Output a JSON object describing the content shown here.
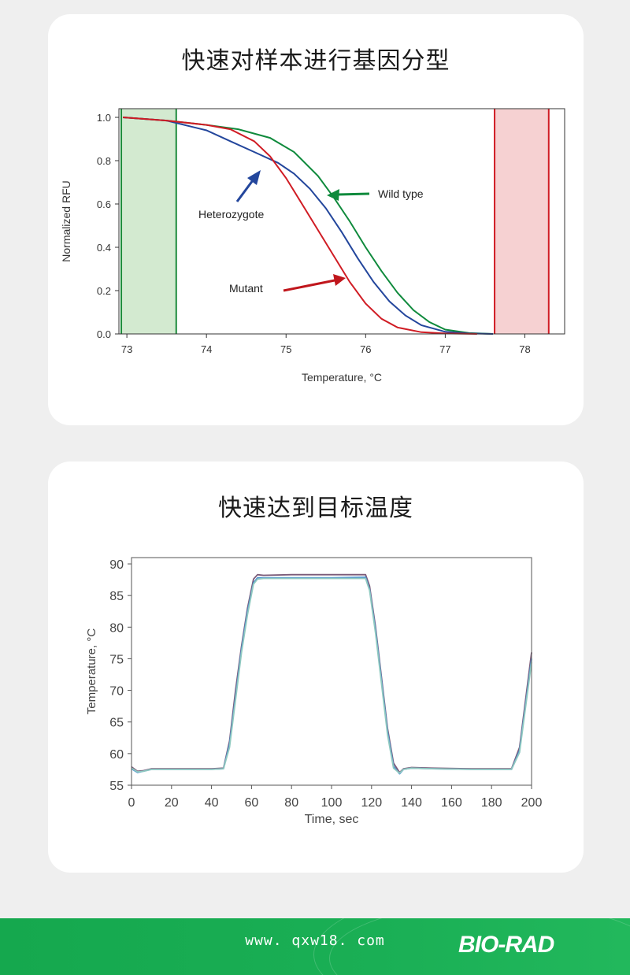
{
  "panel1": {
    "title": "快速对样本进行基因分型",
    "chart_data": {
      "type": "line",
      "xlabel": "Temperature, °C",
      "ylabel": "Normalized RFU",
      "xlim": [
        72.9,
        78.5
      ],
      "ylim": [
        0.0,
        1.04
      ],
      "xticks": [
        "73",
        "74",
        "75",
        "76",
        "77",
        "78"
      ],
      "yticks": [
        "0.0",
        "0.2",
        "0.4",
        "0.6",
        "0.8",
        "1.0"
      ],
      "regions": [
        {
          "x0": 72.93,
          "x1": 73.62,
          "fill": "#d3ead0",
          "stroke": "#1e8c3c"
        },
        {
          "x0": 77.62,
          "x1": 78.3,
          "fill": "#f6d1d2",
          "stroke": "#d01c24"
        }
      ],
      "series": [
        {
          "color": "#0f8a3c",
          "x": [
            72.95,
            73.5,
            74.0,
            74.4,
            74.8,
            75.1,
            75.4,
            75.6,
            75.8,
            76.0,
            76.2,
            76.4,
            76.6,
            76.8,
            77.0,
            77.3,
            77.6
          ],
          "y": [
            1.0,
            0.985,
            0.965,
            0.945,
            0.905,
            0.84,
            0.73,
            0.63,
            0.52,
            0.4,
            0.29,
            0.19,
            0.11,
            0.055,
            0.02,
            0.004,
            0.0
          ]
        },
        {
          "color": "#23469c",
          "x": [
            72.95,
            73.5,
            74.0,
            74.3,
            74.6,
            74.9,
            75.1,
            75.3,
            75.5,
            75.7,
            75.9,
            76.1,
            76.3,
            76.5,
            76.7,
            77.0,
            77.3,
            77.6
          ],
          "y": [
            1.0,
            0.985,
            0.94,
            0.89,
            0.84,
            0.79,
            0.74,
            0.67,
            0.58,
            0.47,
            0.35,
            0.24,
            0.15,
            0.085,
            0.04,
            0.01,
            0.002,
            0.0
          ]
        },
        {
          "color": "#d01c24",
          "x": [
            72.95,
            73.5,
            74.0,
            74.3,
            74.6,
            74.8,
            75.0,
            75.2,
            75.4,
            75.6,
            75.8,
            76.0,
            76.2,
            76.4,
            76.7,
            77.0,
            77.4
          ],
          "y": [
            1.0,
            0.985,
            0.965,
            0.945,
            0.89,
            0.82,
            0.72,
            0.6,
            0.48,
            0.36,
            0.24,
            0.14,
            0.07,
            0.03,
            0.008,
            0.002,
            0.0
          ]
        }
      ],
      "annotations": [
        {
          "text": "Wild type",
          "color": "#0f8a3c"
        },
        {
          "text": "Heterozygote",
          "color": "#23469c"
        },
        {
          "text": "Mutant",
          "color": "#c0161c"
        }
      ]
    }
  },
  "panel2": {
    "title": "快速达到目标温度",
    "chart_data": {
      "type": "line",
      "xlabel": "Time, sec",
      "ylabel": "Temperature, °C",
      "xlim": [
        0,
        200
      ],
      "ylim": [
        55,
        91
      ],
      "xticks": [
        "0",
        "20",
        "40",
        "60",
        "80",
        "100",
        "120",
        "140",
        "160",
        "180",
        "200"
      ],
      "yticks": [
        "55",
        "60",
        "65",
        "70",
        "75",
        "80",
        "85",
        "90"
      ],
      "series": [
        {
          "color": "#7a5a78",
          "x": [
            0,
            3,
            6,
            10,
            20,
            30,
            40,
            46,
            49,
            52,
            55,
            58,
            61,
            63,
            66,
            80,
            100,
            117,
            119,
            122,
            125,
            128,
            131,
            134,
            136,
            140,
            150,
            170,
            190,
            194,
            200
          ],
          "y": [
            57.9,
            57.2,
            57.3,
            57.6,
            57.6,
            57.6,
            57.6,
            57.7,
            62,
            70,
            77,
            83,
            87.6,
            88.3,
            88.2,
            88.3,
            88.3,
            88.3,
            86.5,
            80,
            72,
            64,
            58.5,
            57.0,
            57.6,
            57.8,
            57.7,
            57.6,
            57.6,
            61,
            76
          ]
        },
        {
          "color": "#4a8fd0",
          "x": [
            0,
            3,
            6,
            10,
            20,
            30,
            40,
            46,
            49,
            52,
            55,
            58,
            61,
            63,
            66,
            80,
            100,
            117,
            119,
            122,
            125,
            128,
            131,
            134,
            136,
            140,
            150,
            170,
            190,
            194,
            200
          ],
          "y": [
            57.6,
            57.0,
            57.2,
            57.5,
            57.5,
            57.5,
            57.5,
            57.6,
            61.5,
            69,
            76.5,
            82.5,
            87.0,
            87.8,
            87.8,
            87.8,
            87.8,
            87.9,
            86.0,
            79.5,
            71.5,
            63.5,
            58.0,
            56.8,
            57.5,
            57.7,
            57.6,
            57.5,
            57.5,
            60.5,
            75
          ]
        },
        {
          "color": "#8fc9c0",
          "x": [
            0,
            3,
            6,
            10,
            20,
            30,
            40,
            46,
            49,
            52,
            55,
            58,
            61,
            63,
            66,
            80,
            100,
            117,
            119,
            122,
            125,
            128,
            131,
            134,
            136,
            140,
            150,
            170,
            190,
            194,
            200
          ],
          "y": [
            57.7,
            57.1,
            57.2,
            57.5,
            57.5,
            57.5,
            57.5,
            57.6,
            61.0,
            68.5,
            76,
            82,
            86.8,
            87.6,
            87.7,
            87.7,
            87.7,
            87.7,
            85.8,
            79,
            71,
            63,
            57.7,
            56.9,
            57.5,
            57.7,
            57.6,
            57.5,
            57.5,
            60.2,
            74.5
          ]
        }
      ]
    }
  },
  "footer": {
    "url": "www. qxw18. com",
    "logo": "BIO-RAD"
  }
}
